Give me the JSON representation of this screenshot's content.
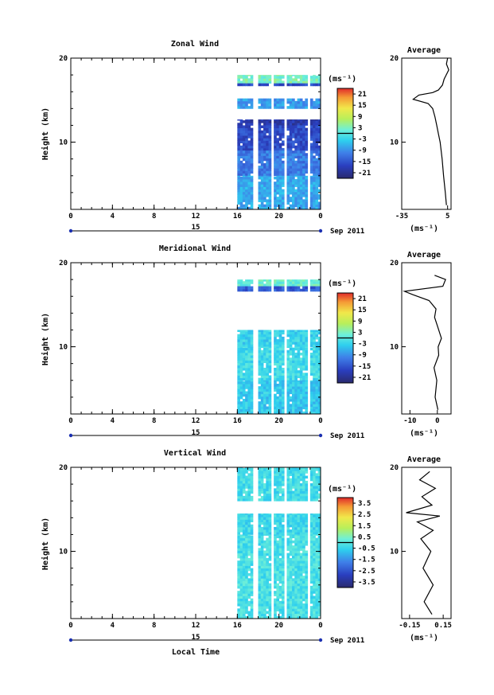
{
  "chart_data": [
    {
      "type": "heatmap",
      "title": "Zonal Wind",
      "ylabel": "Height (km)",
      "ylim": [
        2,
        20
      ],
      "yticks": [
        "20",
        "10"
      ],
      "x_ticks": [
        "0",
        "4",
        "8",
        "12",
        "16",
        "20",
        "0"
      ],
      "xlim": [
        0,
        24
      ],
      "date_day": "15",
      "date_label": "Sep 2011",
      "colorbar": {
        "unit": "(ms⁻¹)",
        "ticks": [
          "21",
          "15",
          "9",
          "3",
          "-3",
          "-9",
          "-15",
          "-21"
        ],
        "range": [
          -24,
          24
        ]
      },
      "data_time_range": [
        16,
        24
      ],
      "bands": [
        {
          "h": [
            17.0,
            18.0
          ],
          "v": 3
        },
        {
          "h": [
            16.7,
            17.0
          ],
          "v": -16
        },
        {
          "h": [
            14.0,
            15.2
          ],
          "v": -8
        },
        {
          "h": [
            12.0,
            12.7
          ],
          "v": -19
        },
        {
          "h": [
            9.0,
            12.0
          ],
          "v": -16
        },
        {
          "h": [
            6.0,
            9.0
          ],
          "v": -11
        },
        {
          "h": [
            2.0,
            6.0
          ],
          "v": -7
        }
      ],
      "profile": {
        "title": "Average",
        "xlabel": "(ms⁻¹)",
        "xticks": [
          "-35",
          "5"
        ],
        "xlim": [
          -35,
          8
        ],
        "ylim": [
          2,
          20
        ],
        "yticks": [
          "20",
          "10"
        ],
        "points": [
          [
            4.0,
            2.5
          ],
          [
            3.0,
            4
          ],
          [
            1.5,
            6
          ],
          [
            0.2,
            8
          ],
          [
            -1.5,
            10
          ],
          [
            -3.0,
            11
          ],
          [
            -4.5,
            12
          ],
          [
            -6.0,
            13
          ],
          [
            -8.0,
            14
          ],
          [
            -12.0,
            14.6
          ],
          [
            -25.0,
            15.1
          ],
          [
            -20.0,
            15.6
          ],
          [
            -8.0,
            15.9
          ],
          [
            -3.0,
            16.2
          ],
          [
            0.5,
            16.8
          ],
          [
            2.0,
            17.5
          ],
          [
            4.5,
            18.2
          ],
          [
            6.0,
            18.6
          ],
          [
            4.0,
            19.3
          ],
          [
            5.0,
            20
          ]
        ]
      }
    },
    {
      "type": "heatmap",
      "title": "Meridional Wind",
      "ylabel": "Height (km)",
      "ylim": [
        2,
        20
      ],
      "yticks": [
        "20",
        "10"
      ],
      "x_ticks": [
        "0",
        "4",
        "8",
        "12",
        "16",
        "20",
        "0"
      ],
      "xlim": [
        0,
        24
      ],
      "date_day": "15",
      "date_label": "Sep 2011",
      "colorbar": {
        "unit": "(ms⁻¹)",
        "ticks": [
          "21",
          "15",
          "9",
          "3",
          "-3",
          "-9",
          "-15",
          "-21"
        ],
        "range": [
          -24,
          24
        ]
      },
      "data_time_range": [
        16,
        24
      ],
      "bands": [
        {
          "h": [
            17.2,
            18.0
          ],
          "v": 2
        },
        {
          "h": [
            16.6,
            17.2
          ],
          "v": -14
        },
        {
          "h": [
            10.0,
            12.0
          ],
          "v": -3
        },
        {
          "h": [
            6.0,
            10.0
          ],
          "v": -2
        },
        {
          "h": [
            2.0,
            6.0
          ],
          "v": -4
        }
      ],
      "profile": {
        "title": "Average",
        "xlabel": "(ms⁻¹)",
        "xticks": [
          "-10",
          "0"
        ],
        "xlim": [
          -13,
          5
        ],
        "ylim": [
          2,
          20
        ],
        "yticks": [
          "20",
          "10"
        ],
        "points": [
          [
            0.2,
            2.5
          ],
          [
            -0.8,
            4
          ],
          [
            -0.2,
            6
          ],
          [
            -1.2,
            7.5
          ],
          [
            0.5,
            9
          ],
          [
            0.3,
            10
          ],
          [
            1.5,
            11
          ],
          [
            0.0,
            12.5
          ],
          [
            -1.0,
            13.5
          ],
          [
            -0.5,
            14.5
          ],
          [
            -3.0,
            15.5
          ],
          [
            -9.0,
            16.2
          ],
          [
            -12.0,
            16.6
          ],
          [
            2.0,
            17.2
          ],
          [
            3.0,
            18.0
          ],
          [
            -1.0,
            18.5
          ]
        ]
      }
    },
    {
      "type": "heatmap",
      "title": "Vertical Wind",
      "ylabel": "Height (km)",
      "ylim": [
        2,
        20
      ],
      "yticks": [
        "20",
        "10"
      ],
      "x_ticks": [
        "0",
        "4",
        "8",
        "12",
        "16",
        "20",
        "0"
      ],
      "xlim": [
        0,
        24
      ],
      "date_day": "15",
      "date_label": "Sep 2011",
      "xlabel": "Local Time",
      "colorbar": {
        "unit": "(ms⁻¹)",
        "ticks": [
          "3.5",
          "2.5",
          "1.5",
          "0.5",
          "-0.5",
          "-1.5",
          "-2.5",
          "-3.5"
        ],
        "range": [
          -4,
          4
        ]
      },
      "data_time_range": [
        16,
        24
      ],
      "bands": [
        {
          "h": [
            16.0,
            20.0
          ],
          "v": -0.3
        },
        {
          "h": [
            12.0,
            14.5
          ],
          "v": -0.4
        },
        {
          "h": [
            2.0,
            12.0
          ],
          "v": -0.2
        }
      ],
      "profile": {
        "title": "Average",
        "xlabel": "(ms⁻¹)",
        "xticks": [
          "-0.15",
          "0.15"
        ],
        "xlim": [
          -0.22,
          0.22
        ],
        "ylim": [
          2,
          20
        ],
        "yticks": [
          "20",
          "10"
        ],
        "points": [
          [
            0.05,
            2.5
          ],
          [
            -0.02,
            4
          ],
          [
            0.06,
            6
          ],
          [
            -0.03,
            8
          ],
          [
            0.04,
            10
          ],
          [
            -0.05,
            11.5
          ],
          [
            0.06,
            12.5
          ],
          [
            -0.08,
            13.5
          ],
          [
            0.12,
            14.2
          ],
          [
            -0.18,
            14.6
          ],
          [
            0.05,
            15.5
          ],
          [
            -0.04,
            16.5
          ],
          [
            0.08,
            17.5
          ],
          [
            -0.06,
            18.5
          ],
          [
            0.03,
            19.5
          ]
        ]
      }
    }
  ]
}
